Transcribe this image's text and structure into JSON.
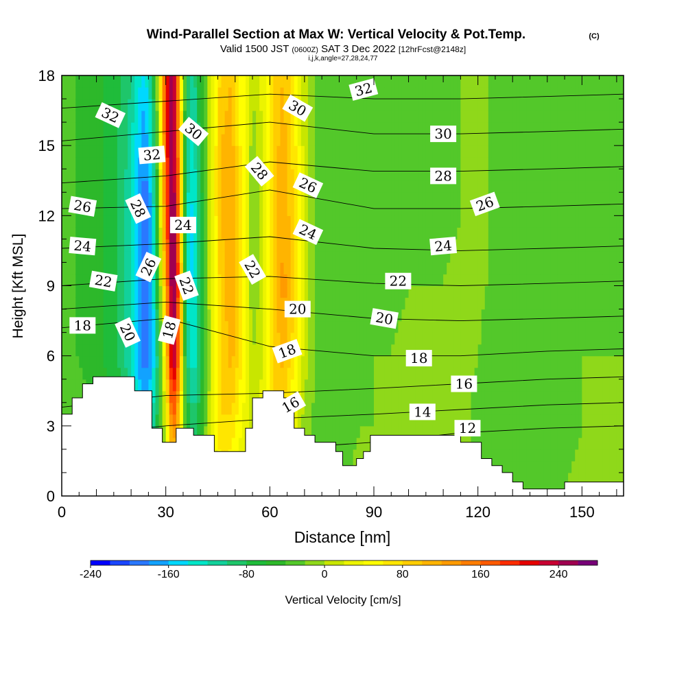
{
  "chart_data": {
    "type": "heatmap",
    "title": "Wind-Parallel Section at Max W: Vertical Velocity & Pot.Temp.",
    "title_mark": "(C)",
    "subtitle": {
      "valid": "Valid 1500 JST",
      "utc": "(0600Z)",
      "date": "SAT 3 Dec 2022",
      "fcst": "[12hrFcst@2148z]"
    },
    "subtitle2": "i,j,k,angle=27,28,24,77",
    "xlabel": "Distance [nm]",
    "ylabel": "Height [Kft MSL]",
    "xlim": [
      0,
      162
    ],
    "ylim": [
      0,
      18
    ],
    "x_ticks": [
      0,
      30,
      60,
      90,
      120,
      150
    ],
    "x_tick_labels": [
      "0",
      "30",
      "60",
      "90",
      "120",
      "150"
    ],
    "y_ticks": [
      0,
      3,
      6,
      9,
      12,
      15,
      18
    ],
    "y_tick_labels": [
      "0",
      "3",
      "6",
      "9",
      "12",
      "15",
      "18"
    ],
    "colorbar": {
      "label": "Vertical Velocity [cm/s]",
      "min": -240,
      "max": 280,
      "step": 20,
      "tick_values": [
        -240,
        -160,
        -80,
        0,
        80,
        160,
        240
      ],
      "tick_labels": [
        "-240",
        "-160",
        "-80",
        "0",
        "80",
        "160",
        "240"
      ],
      "colors": [
        "#0000ff",
        "#1a46ff",
        "#2a78ff",
        "#12a2ff",
        "#00d8ff",
        "#00e6c8",
        "#12d19b",
        "#1ec66a",
        "#1fbc3a",
        "#2db82a",
        "#53c82a",
        "#8fd81a",
        "#c8e600",
        "#ecf400",
        "#ffff00",
        "#ffe600",
        "#ffcd00",
        "#ffb400",
        "#ff9b00",
        "#ff7d00",
        "#ff5a00",
        "#ff2d00",
        "#e60000",
        "#c80032",
        "#a00050",
        "#780078"
      ]
    },
    "w_field": {
      "units": "cm/s",
      "x": [
        0,
        4,
        8,
        12,
        16,
        19,
        22,
        24,
        26,
        28,
        30,
        32,
        34,
        36,
        38,
        40,
        43,
        46,
        49,
        52,
        55,
        58,
        61,
        64,
        67,
        70,
        74,
        78,
        82,
        86,
        90,
        95,
        100,
        105,
        110,
        115,
        120,
        125,
        130,
        135,
        140,
        145,
        150,
        155,
        162
      ],
      "z": [
        0,
        3,
        6,
        9,
        12,
        15,
        18
      ],
      "values": [
        [
          0,
          -10,
          -20,
          -30,
          -40,
          -60,
          -80,
          -100,
          -80,
          -40,
          0,
          60,
          20,
          -40,
          -50,
          -30,
          0,
          50,
          40,
          20,
          0,
          20,
          60,
          30,
          10,
          -10,
          -20,
          -20,
          -20,
          -15,
          -10,
          -10,
          -5,
          -5,
          -5,
          -5,
          -20,
          -30,
          -30,
          -25,
          -20,
          -20,
          -15,
          -15,
          -15
        ],
        [
          -20,
          -25,
          -35,
          -45,
          -60,
          -90,
          -130,
          -150,
          -120,
          -60,
          20,
          160,
          80,
          -60,
          -100,
          -60,
          20,
          80,
          70,
          40,
          10,
          30,
          80,
          60,
          30,
          -10,
          -30,
          -30,
          -25,
          -20,
          -20,
          -15,
          -10,
          -10,
          -10,
          -10,
          -30,
          -40,
          -35,
          -30,
          -25,
          -25,
          -20,
          -20,
          -20
        ],
        [
          -30,
          -40,
          -50,
          -60,
          -80,
          -110,
          -160,
          -200,
          -170,
          -80,
          80,
          260,
          140,
          -100,
          -140,
          -80,
          10,
          80,
          110,
          60,
          0,
          20,
          80,
          110,
          70,
          10,
          -30,
          -40,
          -35,
          -30,
          -20,
          -20,
          -15,
          -15,
          -15,
          -10,
          -20,
          -30,
          -30,
          -30,
          -25,
          -25,
          -20,
          -20,
          -20
        ],
        [
          -30,
          -40,
          -50,
          -60,
          -80,
          -110,
          -160,
          -210,
          -170,
          -40,
          120,
          280,
          150,
          -120,
          -150,
          -80,
          20,
          90,
          120,
          60,
          -20,
          10,
          90,
          130,
          80,
          10,
          -30,
          -40,
          -40,
          -35,
          -25,
          -25,
          -20,
          -20,
          -20,
          -15,
          -15,
          -25,
          -30,
          -30,
          -30,
          -25,
          -25,
          -25,
          -25
        ],
        [
          -30,
          -40,
          -50,
          -60,
          -80,
          -110,
          -160,
          -200,
          -160,
          -20,
          160,
          280,
          140,
          -120,
          -150,
          -80,
          20,
          100,
          120,
          60,
          -20,
          10,
          90,
          120,
          80,
          10,
          -30,
          -40,
          -40,
          -35,
          -30,
          -30,
          -25,
          -25,
          -25,
          -20,
          -15,
          -25,
          -30,
          -30,
          -30,
          -30,
          -25,
          -25,
          -25
        ],
        [
          -30,
          -40,
          -50,
          -60,
          -80,
          -100,
          -150,
          -180,
          -130,
          0,
          180,
          270,
          120,
          -100,
          -130,
          -70,
          20,
          100,
          110,
          50,
          -10,
          20,
          90,
          110,
          70,
          10,
          -30,
          -40,
          -40,
          -40,
          -30,
          -30,
          -30,
          -25,
          -25,
          -20,
          -15,
          -25,
          -35,
          -30,
          -30,
          -30,
          -25,
          -25,
          -25
        ],
        [
          -30,
          -40,
          -50,
          -60,
          -70,
          -90,
          -130,
          -150,
          -100,
          20,
          200,
          260,
          100,
          -80,
          -110,
          -60,
          20,
          90,
          100,
          50,
          0,
          30,
          90,
          100,
          60,
          10,
          -30,
          -40,
          -40,
          -40,
          -30,
          -30,
          -30,
          -25,
          -25,
          -20,
          -15,
          -25,
          -35,
          -30,
          -30,
          -30,
          -25,
          -25,
          -25
        ]
      ]
    },
    "terrain": {
      "units": "kft",
      "x": [
        0,
        3,
        6,
        9,
        12,
        15,
        18,
        21,
        24,
        26,
        27,
        29,
        31,
        33,
        35,
        38,
        41,
        44,
        47,
        50,
        53,
        55,
        58,
        61,
        64,
        67,
        70,
        73,
        76,
        79,
        81,
        83,
        85,
        87,
        89,
        95,
        100,
        105,
        110,
        115,
        118,
        121,
        124,
        127,
        130,
        133,
        136,
        139,
        142,
        145,
        148,
        151,
        155,
        162
      ],
      "height": [
        3.5,
        4.2,
        4.8,
        5.1,
        5.1,
        5.1,
        5.1,
        4.5,
        4.5,
        2.9,
        2.9,
        2.3,
        2.3,
        2.9,
        2.9,
        2.6,
        2.6,
        1.9,
        1.9,
        1.9,
        2.9,
        4.2,
        4.5,
        4.5,
        4.2,
        2.9,
        2.6,
        2.3,
        2.3,
        1.9,
        1.3,
        1.3,
        1.6,
        1.9,
        2.6,
        2.6,
        2.6,
        2.6,
        2.6,
        2.3,
        2.3,
        1.6,
        1.3,
        1.0,
        0.6,
        0.3,
        0.3,
        0.3,
        0.3,
        0.6,
        0.6,
        0.6,
        0.6,
        0.6
      ]
    },
    "theta_contours": [
      {
        "label": "12",
        "points": [
          [
            0,
            1.2
          ],
          [
            30,
            1.5
          ],
          [
            60,
            2.0
          ],
          [
            90,
            2.3
          ],
          [
            115,
            2.7
          ],
          [
            140,
            2.9
          ],
          [
            162,
            3.0
          ]
        ]
      },
      {
        "label": "14",
        "points": [
          [
            0,
            2.6
          ],
          [
            30,
            3.0
          ],
          [
            60,
            3.3
          ],
          [
            90,
            3.5
          ],
          [
            115,
            3.7
          ],
          [
            140,
            3.9
          ],
          [
            162,
            4.0
          ]
        ]
      },
      {
        "label": "16",
        "points": [
          [
            0,
            3.8
          ],
          [
            30,
            4.3
          ],
          [
            60,
            4.4
          ],
          [
            90,
            4.6
          ],
          [
            115,
            4.8
          ],
          [
            140,
            5.0
          ],
          [
            162,
            5.1
          ]
        ]
      },
      {
        "label": "18",
        "points": [
          [
            0,
            7.2
          ],
          [
            30,
            7.6
          ],
          [
            60,
            6.4
          ],
          [
            90,
            6.0
          ],
          [
            115,
            6.0
          ],
          [
            140,
            6.2
          ],
          [
            162,
            6.3
          ]
        ]
      },
      {
        "label": "20",
        "points": [
          [
            0,
            8.0
          ],
          [
            30,
            8.3
          ],
          [
            60,
            8.0
          ],
          [
            90,
            7.6
          ],
          [
            115,
            7.5
          ],
          [
            140,
            7.6
          ],
          [
            162,
            7.7
          ]
        ]
      },
      {
        "label": "22",
        "points": [
          [
            0,
            9.0
          ],
          [
            30,
            9.3
          ],
          [
            60,
            9.4
          ],
          [
            90,
            9.1
          ],
          [
            115,
            9.0
          ],
          [
            140,
            9.1
          ],
          [
            162,
            9.2
          ]
        ]
      },
      {
        "label": "24",
        "points": [
          [
            0,
            10.6
          ],
          [
            30,
            10.8
          ],
          [
            60,
            11.1
          ],
          [
            90,
            10.6
          ],
          [
            115,
            10.5
          ],
          [
            140,
            10.6
          ],
          [
            162,
            10.7
          ]
        ]
      },
      {
        "label": "26",
        "points": [
          [
            0,
            12.3
          ],
          [
            30,
            12.4
          ],
          [
            60,
            13.1
          ],
          [
            90,
            12.3
          ],
          [
            115,
            12.3
          ],
          [
            140,
            12.4
          ],
          [
            162,
            12.5
          ]
        ]
      },
      {
        "label": "28",
        "points": [
          [
            0,
            13.4
          ],
          [
            30,
            13.7
          ],
          [
            60,
            14.3
          ],
          [
            90,
            13.9
          ],
          [
            115,
            13.9
          ],
          [
            140,
            14.0
          ],
          [
            162,
            14.1
          ]
        ]
      },
      {
        "label": "30",
        "points": [
          [
            0,
            15.2
          ],
          [
            30,
            15.6
          ],
          [
            60,
            16.0
          ],
          [
            90,
            15.5
          ],
          [
            115,
            15.5
          ],
          [
            140,
            15.6
          ],
          [
            162,
            15.7
          ]
        ]
      },
      {
        "label": "32",
        "points": [
          [
            0,
            16.6
          ],
          [
            30,
            16.9
          ],
          [
            60,
            17.2
          ],
          [
            90,
            17.0
          ],
          [
            115,
            17.0
          ],
          [
            140,
            17.1
          ],
          [
            162,
            17.2
          ]
        ]
      }
    ],
    "contour_labels": [
      {
        "text": "32",
        "x": 14.0,
        "z": 16.3,
        "angle": 25
      },
      {
        "text": "30",
        "x": 38.0,
        "z": 15.6,
        "angle": 40
      },
      {
        "text": "30",
        "x": 68.0,
        "z": 16.6,
        "angle": 30
      },
      {
        "text": "32",
        "x": 87.0,
        "z": 17.4,
        "angle": -15
      },
      {
        "text": "30",
        "x": 110.0,
        "z": 15.5,
        "angle": 0
      },
      {
        "text": "32",
        "x": 26.0,
        "z": 14.6,
        "angle": -5
      },
      {
        "text": "28",
        "x": 57.0,
        "z": 13.9,
        "angle": 50
      },
      {
        "text": "26",
        "x": 71.0,
        "z": 13.3,
        "angle": 25
      },
      {
        "text": "28",
        "x": 110.0,
        "z": 13.7,
        "angle": 0
      },
      {
        "text": "26",
        "x": 6.0,
        "z": 12.4,
        "angle": 10
      },
      {
        "text": "26",
        "x": 122.0,
        "z": 12.5,
        "angle": -20
      },
      {
        "text": "28",
        "x": 22.0,
        "z": 12.3,
        "angle": 65
      },
      {
        "text": "24",
        "x": 35.0,
        "z": 11.6,
        "angle": 0
      },
      {
        "text": "24",
        "x": 71.0,
        "z": 11.3,
        "angle": 25
      },
      {
        "text": "24",
        "x": 6.0,
        "z": 10.7,
        "angle": 5
      },
      {
        "text": "24",
        "x": 110.0,
        "z": 10.7,
        "angle": -5
      },
      {
        "text": "26",
        "x": 25.0,
        "z": 9.8,
        "angle": -65
      },
      {
        "text": "22",
        "x": 55.0,
        "z": 9.7,
        "angle": 60
      },
      {
        "text": "22",
        "x": 36.0,
        "z": 9.0,
        "angle": 70
      },
      {
        "text": "22",
        "x": 12.0,
        "z": 9.2,
        "angle": 10
      },
      {
        "text": "22",
        "x": 97.0,
        "z": 9.2,
        "angle": 0
      },
      {
        "text": "20",
        "x": 68.0,
        "z": 8.0,
        "angle": 0
      },
      {
        "text": "20",
        "x": 93.0,
        "z": 7.6,
        "angle": 10
      },
      {
        "text": "20",
        "x": 19.0,
        "z": 7.0,
        "angle": 65
      },
      {
        "text": "18",
        "x": 31.0,
        "z": 7.1,
        "angle": -75
      },
      {
        "text": "18",
        "x": 6.0,
        "z": 7.3,
        "angle": 0
      },
      {
        "text": "18",
        "x": 103.0,
        "z": 5.9,
        "angle": 0
      },
      {
        "text": "18",
        "x": 65.0,
        "z": 6.2,
        "angle": -20
      },
      {
        "text": "16",
        "x": 66.0,
        "z": 3.9,
        "angle": -30
      },
      {
        "text": "16",
        "x": 116.0,
        "z": 4.8,
        "angle": 0
      },
      {
        "text": "14",
        "x": 104.0,
        "z": 3.6,
        "angle": 0
      },
      {
        "text": "12",
        "x": 117.0,
        "z": 2.9,
        "angle": 0
      }
    ]
  }
}
